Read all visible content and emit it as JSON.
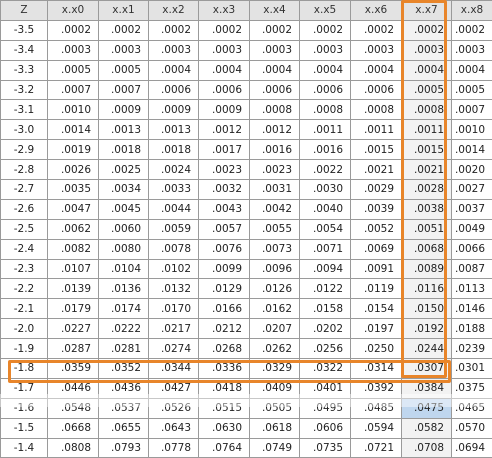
{
  "table": {
    "headers": [
      "Z",
      "x.x0",
      "x.x1",
      "x.x2",
      "x.x3",
      "x.x4",
      "x.x5",
      "x.x6",
      "x.x7",
      "x.x8"
    ],
    "rows": [
      [
        "-3.5",
        ".0002",
        ".0002",
        ".0002",
        ".0002",
        ".0002",
        ".0002",
        ".0002",
        ".0002",
        ".0002"
      ],
      [
        "-3.4",
        ".0003",
        ".0003",
        ".0003",
        ".0003",
        ".0003",
        ".0003",
        ".0003",
        ".0003",
        ".0003"
      ],
      [
        "-3.3",
        ".0005",
        ".0005",
        ".0004",
        ".0004",
        ".0004",
        ".0004",
        ".0004",
        ".0004",
        ".0004"
      ],
      [
        "-3.2",
        ".0007",
        ".0007",
        ".0006",
        ".0006",
        ".0006",
        ".0006",
        ".0006",
        ".0005",
        ".0005"
      ],
      [
        "-3.1",
        ".0010",
        ".0009",
        ".0009",
        ".0009",
        ".0008",
        ".0008",
        ".0008",
        ".0008",
        ".0007"
      ],
      [
        "-3.0",
        ".0014",
        ".0013",
        ".0013",
        ".0012",
        ".0012",
        ".0011",
        ".0011",
        ".0011",
        ".0010"
      ],
      [
        "-2.9",
        ".0019",
        ".0018",
        ".0018",
        ".0017",
        ".0016",
        ".0016",
        ".0015",
        ".0015",
        ".0014"
      ],
      [
        "-2.8",
        ".0026",
        ".0025",
        ".0024",
        ".0023",
        ".0023",
        ".0022",
        ".0021",
        ".0021",
        ".0020"
      ],
      [
        "-2.7",
        ".0035",
        ".0034",
        ".0033",
        ".0032",
        ".0031",
        ".0030",
        ".0029",
        ".0028",
        ".0027"
      ],
      [
        "-2.6",
        ".0047",
        ".0045",
        ".0044",
        ".0043",
        ".0042",
        ".0040",
        ".0039",
        ".0038",
        ".0037"
      ],
      [
        "-2.5",
        ".0062",
        ".0060",
        ".0059",
        ".0057",
        ".0055",
        ".0054",
        ".0052",
        ".0051",
        ".0049"
      ],
      [
        "-2.4",
        ".0082",
        ".0080",
        ".0078",
        ".0076",
        ".0073",
        ".0071",
        ".0069",
        ".0068",
        ".0066"
      ],
      [
        "-2.3",
        ".0107",
        ".0104",
        ".0102",
        ".0099",
        ".0096",
        ".0094",
        ".0091",
        ".0089",
        ".0087"
      ],
      [
        "-2.2",
        ".0139",
        ".0136",
        ".0132",
        ".0129",
        ".0126",
        ".0122",
        ".0119",
        ".0116",
        ".0113"
      ],
      [
        "-2.1",
        ".0179",
        ".0174",
        ".0170",
        ".0166",
        ".0162",
        ".0158",
        ".0154",
        ".0150",
        ".0146"
      ],
      [
        "-2.0",
        ".0227",
        ".0222",
        ".0217",
        ".0212",
        ".0207",
        ".0202",
        ".0197",
        ".0192",
        ".0188"
      ],
      [
        "-1.9",
        ".0287",
        ".0281",
        ".0274",
        ".0268",
        ".0262",
        ".0256",
        ".0250",
        ".0244",
        ".0239"
      ],
      [
        "-1.8",
        ".0359",
        ".0352",
        ".0344",
        ".0336",
        ".0329",
        ".0322",
        ".0314",
        ".0307",
        ".0301"
      ],
      [
        "-1.7",
        ".0446",
        ".0436",
        ".0427",
        ".0418",
        ".0409",
        ".0401",
        ".0392",
        ".0384",
        ".0375"
      ],
      [
        "-1.6",
        ".0548",
        ".0537",
        ".0526",
        ".0515",
        ".0505",
        ".0495",
        ".0485",
        ".0475",
        ".0465"
      ],
      [
        "-1.5",
        ".0668",
        ".0655",
        ".0643",
        ".0630",
        ".0618",
        ".0606",
        ".0594",
        ".0582",
        ".0570"
      ],
      [
        "-1.4",
        ".0808",
        ".0793",
        ".0778",
        ".0764",
        ".0749",
        ".0735",
        ".0721",
        ".0708",
        ".0694"
      ]
    ],
    "highlight": {
      "column_header": "x.x7",
      "row_z": "-1.6",
      "selected_value": ".0475",
      "outline_color": "#e8852a",
      "selected_fill": "#bfd6ee",
      "column_fill": "#f2f2f2"
    }
  }
}
